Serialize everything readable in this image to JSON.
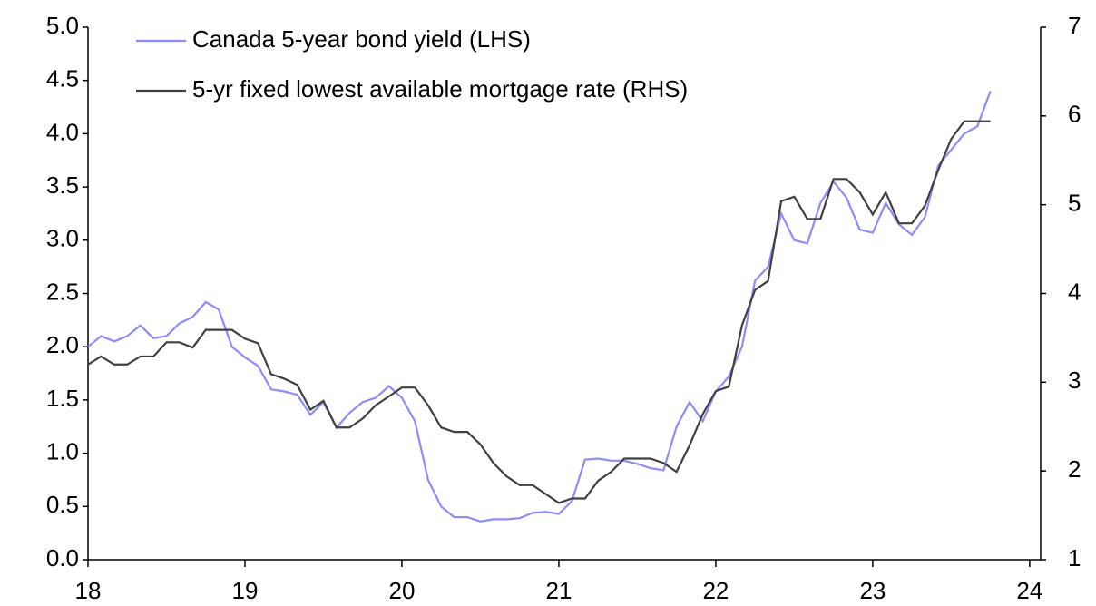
{
  "chart_data": {
    "type": "line",
    "x": [
      18,
      18.083,
      18.167,
      18.25,
      18.333,
      18.417,
      18.5,
      18.583,
      18.667,
      18.75,
      18.833,
      18.917,
      19,
      19.083,
      19.167,
      19.25,
      19.333,
      19.417,
      19.5,
      19.583,
      19.667,
      19.75,
      19.833,
      19.917,
      20,
      20.083,
      20.167,
      20.25,
      20.333,
      20.417,
      20.5,
      20.583,
      20.667,
      20.75,
      20.833,
      20.917,
      21,
      21.083,
      21.167,
      21.25,
      21.333,
      21.417,
      21.5,
      21.583,
      21.667,
      21.75,
      21.833,
      21.917,
      22,
      22.083,
      22.167,
      22.25,
      22.333,
      22.417,
      22.5,
      22.583,
      22.667,
      22.75,
      22.833,
      22.917,
      23,
      23.083,
      23.167,
      23.25,
      23.333,
      23.417,
      23.5,
      23.583,
      23.667,
      23.75
    ],
    "series": [
      {
        "name": "Canada 5-year bond yield (LHS)",
        "color": "#8c8cff",
        "axis": "y",
        "values": [
          2.0,
          2.1,
          2.05,
          2.1,
          2.2,
          2.08,
          2.1,
          2.22,
          2.28,
          2.42,
          2.35,
          2.0,
          1.9,
          1.82,
          1.6,
          1.58,
          1.55,
          1.36,
          1.48,
          1.24,
          1.38,
          1.48,
          1.52,
          1.63,
          1.52,
          1.3,
          0.75,
          0.5,
          0.4,
          0.4,
          0.36,
          0.38,
          0.38,
          0.39,
          0.44,
          0.45,
          0.43,
          0.55,
          0.94,
          0.95,
          0.93,
          0.93,
          0.9,
          0.86,
          0.84,
          1.25,
          1.48,
          1.3,
          1.58,
          1.72,
          2.0,
          2.62,
          2.75,
          3.25,
          3.0,
          2.97,
          3.35,
          3.55,
          3.4,
          3.1,
          3.07,
          3.35,
          3.15,
          3.05,
          3.22,
          3.7,
          3.85,
          4.0,
          4.07,
          4.4
        ]
      },
      {
        "name": "5-yr fixed lowest available mortgage rate (RHS)",
        "color": "#404040",
        "axis": "y2",
        "values": [
          3.2,
          3.29,
          3.2,
          3.2,
          3.29,
          3.29,
          3.45,
          3.45,
          3.39,
          3.59,
          3.59,
          3.59,
          3.49,
          3.44,
          3.09,
          3.04,
          2.97,
          2.69,
          2.79,
          2.49,
          2.49,
          2.59,
          2.74,
          2.84,
          2.94,
          2.94,
          2.74,
          2.49,
          2.44,
          2.44,
          2.3,
          2.09,
          1.94,
          1.84,
          1.84,
          1.74,
          1.64,
          1.69,
          1.69,
          1.89,
          1.99,
          2.14,
          2.14,
          2.14,
          2.09,
          1.99,
          2.29,
          2.64,
          2.9,
          2.95,
          3.64,
          4.04,
          4.14,
          5.04,
          5.09,
          4.84,
          4.84,
          5.29,
          5.29,
          5.14,
          4.89,
          5.14,
          4.79,
          4.79,
          4.99,
          5.39,
          5.74,
          5.94,
          5.94,
          5.94
        ]
      }
    ],
    "xlim": [
      18,
      24.07
    ],
    "xticks": [
      18,
      19,
      20,
      21,
      22,
      23,
      24
    ],
    "ylim": [
      0,
      5
    ],
    "yticks": [
      {
        "value": 0,
        "label": "0.0"
      },
      0.5,
      {
        "value": 1,
        "label": "1.0"
      },
      1.5,
      {
        "value": 2,
        "label": "2.0"
      },
      2.5,
      {
        "value": 3,
        "label": "3.0"
      },
      3.5,
      {
        "value": 4,
        "label": "4.0"
      },
      4.5,
      {
        "value": 5,
        "label": "5.0"
      }
    ],
    "y2lim": [
      1,
      7
    ],
    "y2ticks": [
      1,
      2,
      3,
      4,
      5,
      6,
      7
    ],
    "legend": "upper left"
  }
}
